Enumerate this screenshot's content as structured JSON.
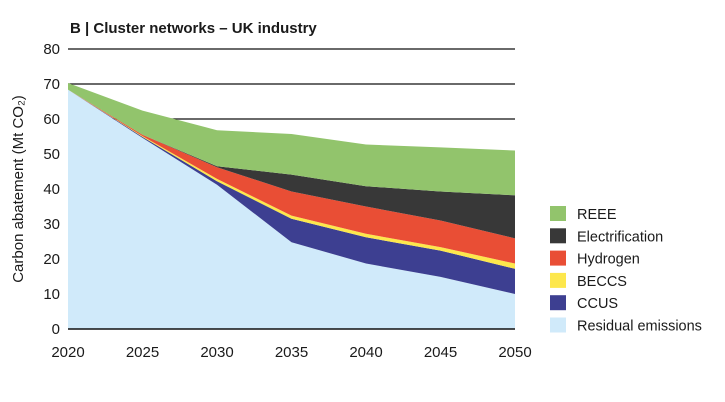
{
  "chart_data": {
    "type": "area",
    "stacked": true,
    "title": "B | Cluster networks – UK industry",
    "xlabel": "",
    "ylabel": "Carbon abatement (Mt CO₂)",
    "x": [
      2020,
      2025,
      2030,
      2035,
      2040,
      2045,
      2050
    ],
    "xlim": [
      2020,
      2050
    ],
    "ylim": [
      0,
      80
    ],
    "yticks": [
      0,
      10,
      20,
      30,
      40,
      50,
      60,
      70,
      80
    ],
    "gridlines": [
      60,
      70,
      80
    ],
    "legend_position": "right",
    "series": [
      {
        "name": "Residual emissions",
        "color": "#d0eafa",
        "values": [
          68.4,
          54.6,
          41.2,
          24.8,
          18.7,
          14.9,
          10.0
        ]
      },
      {
        "name": "CCUS",
        "color": "#3d3f91",
        "values": [
          0,
          0.3,
          1.0,
          6.7,
          7.5,
          7.5,
          7.2
        ]
      },
      {
        "name": "BECCS",
        "color": "#fde74c",
        "values": [
          0,
          0.2,
          0.7,
          0.9,
          1.0,
          1.0,
          1.5
        ]
      },
      {
        "name": "Hydrogen",
        "color": "#e94e35",
        "values": [
          0,
          0.4,
          3.3,
          6.9,
          7.8,
          7.6,
          7.2
        ]
      },
      {
        "name": "Electrification",
        "color": "#383838",
        "values": [
          0,
          0,
          0.3,
          4.8,
          5.8,
          8.3,
          12.3
        ]
      },
      {
        "name": "REEE",
        "color": "#92c46c",
        "values": [
          1.9,
          6.9,
          10.3,
          11.6,
          11.9,
          12.6,
          12.8
        ]
      }
    ]
  }
}
